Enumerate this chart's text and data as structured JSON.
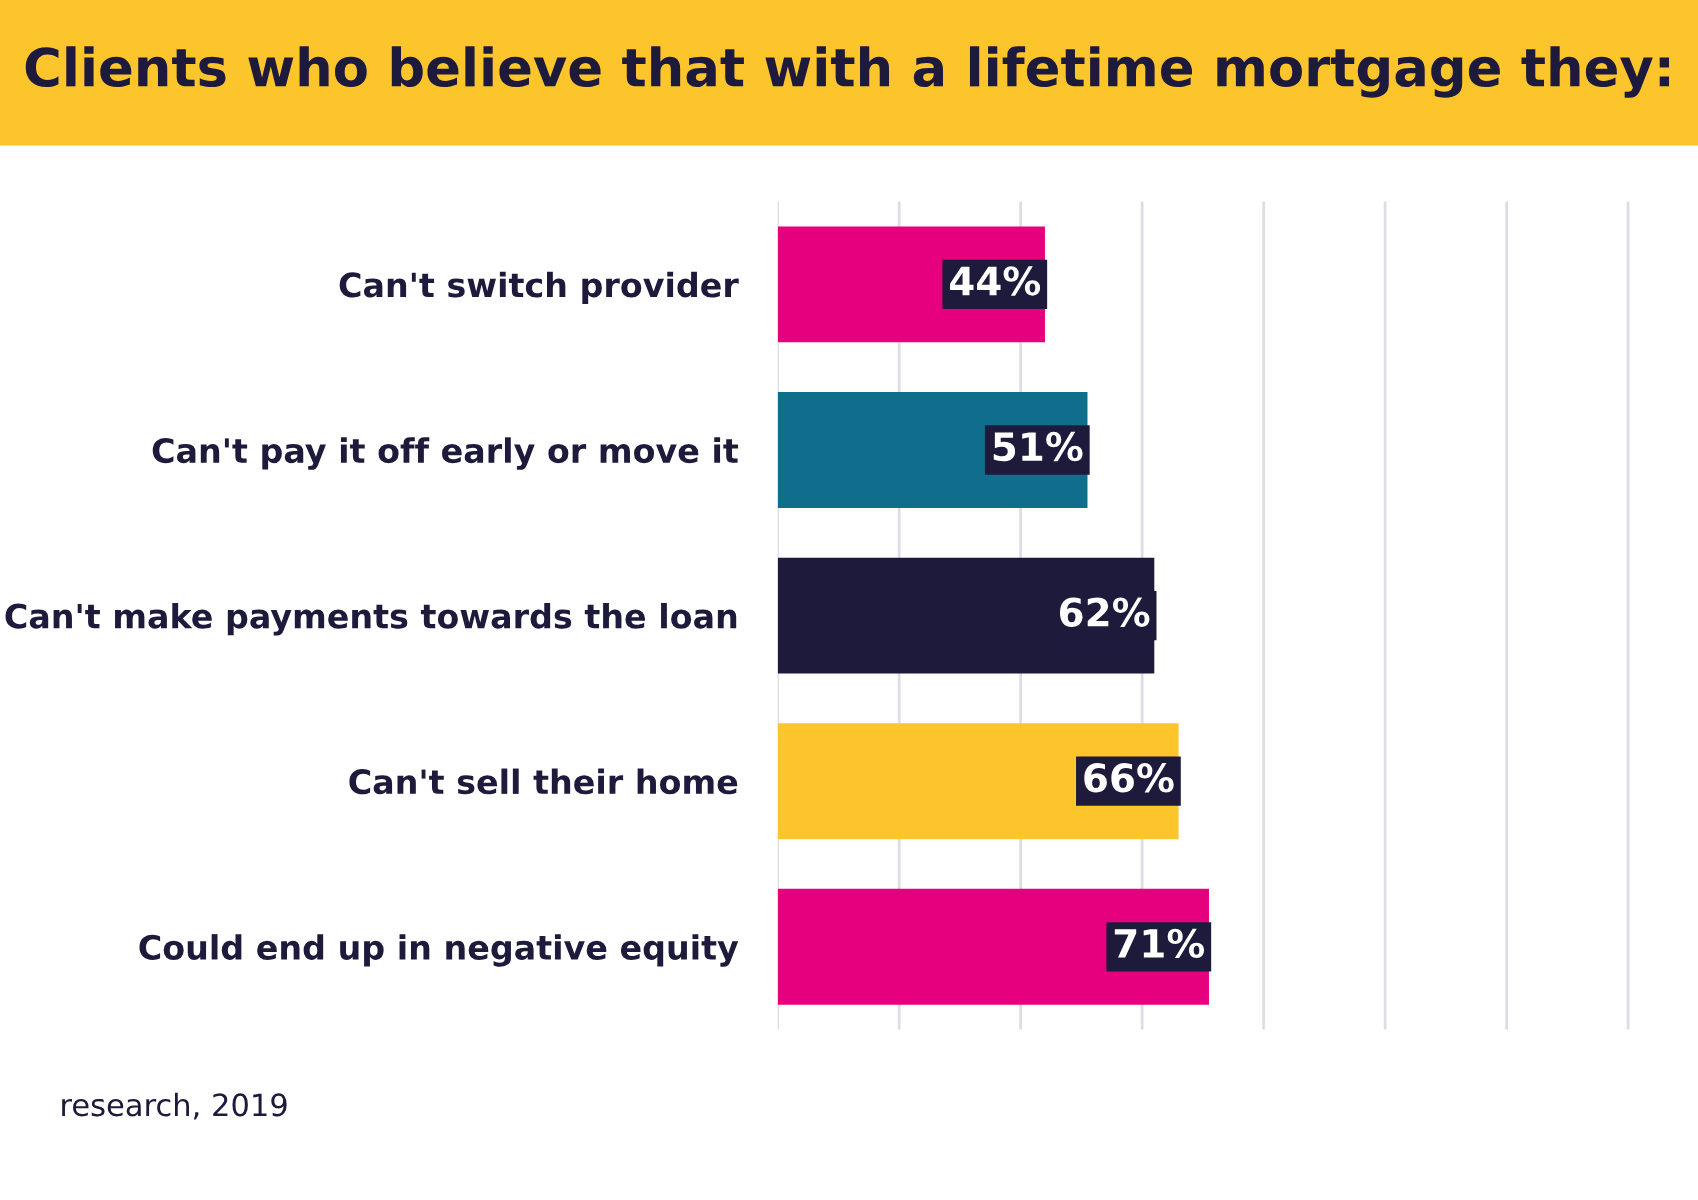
{
  "chart_data": {
    "type": "bar",
    "orientation": "horizontal",
    "title": "Clients who believe that with a lifetime mortgage they:",
    "categories": [
      "Can't switch provider",
      "Can't pay it off early or move it",
      "Can't make payments towards the loan",
      "Can't sell their home",
      "Could end up in negative equity"
    ],
    "values": [
      44,
      51,
      62,
      66,
      71
    ],
    "value_labels": [
      "44%",
      "51%",
      "62%",
      "66%",
      "71%"
    ],
    "colors": [
      "#e6007e",
      "#0f6e8c",
      "#1e1a3c",
      "#fdc52c",
      "#e6007e"
    ],
    "grid": "x",
    "tick_labels": "y",
    "legend": false,
    "annotations": [
      "research, 2019"
    ]
  }
}
